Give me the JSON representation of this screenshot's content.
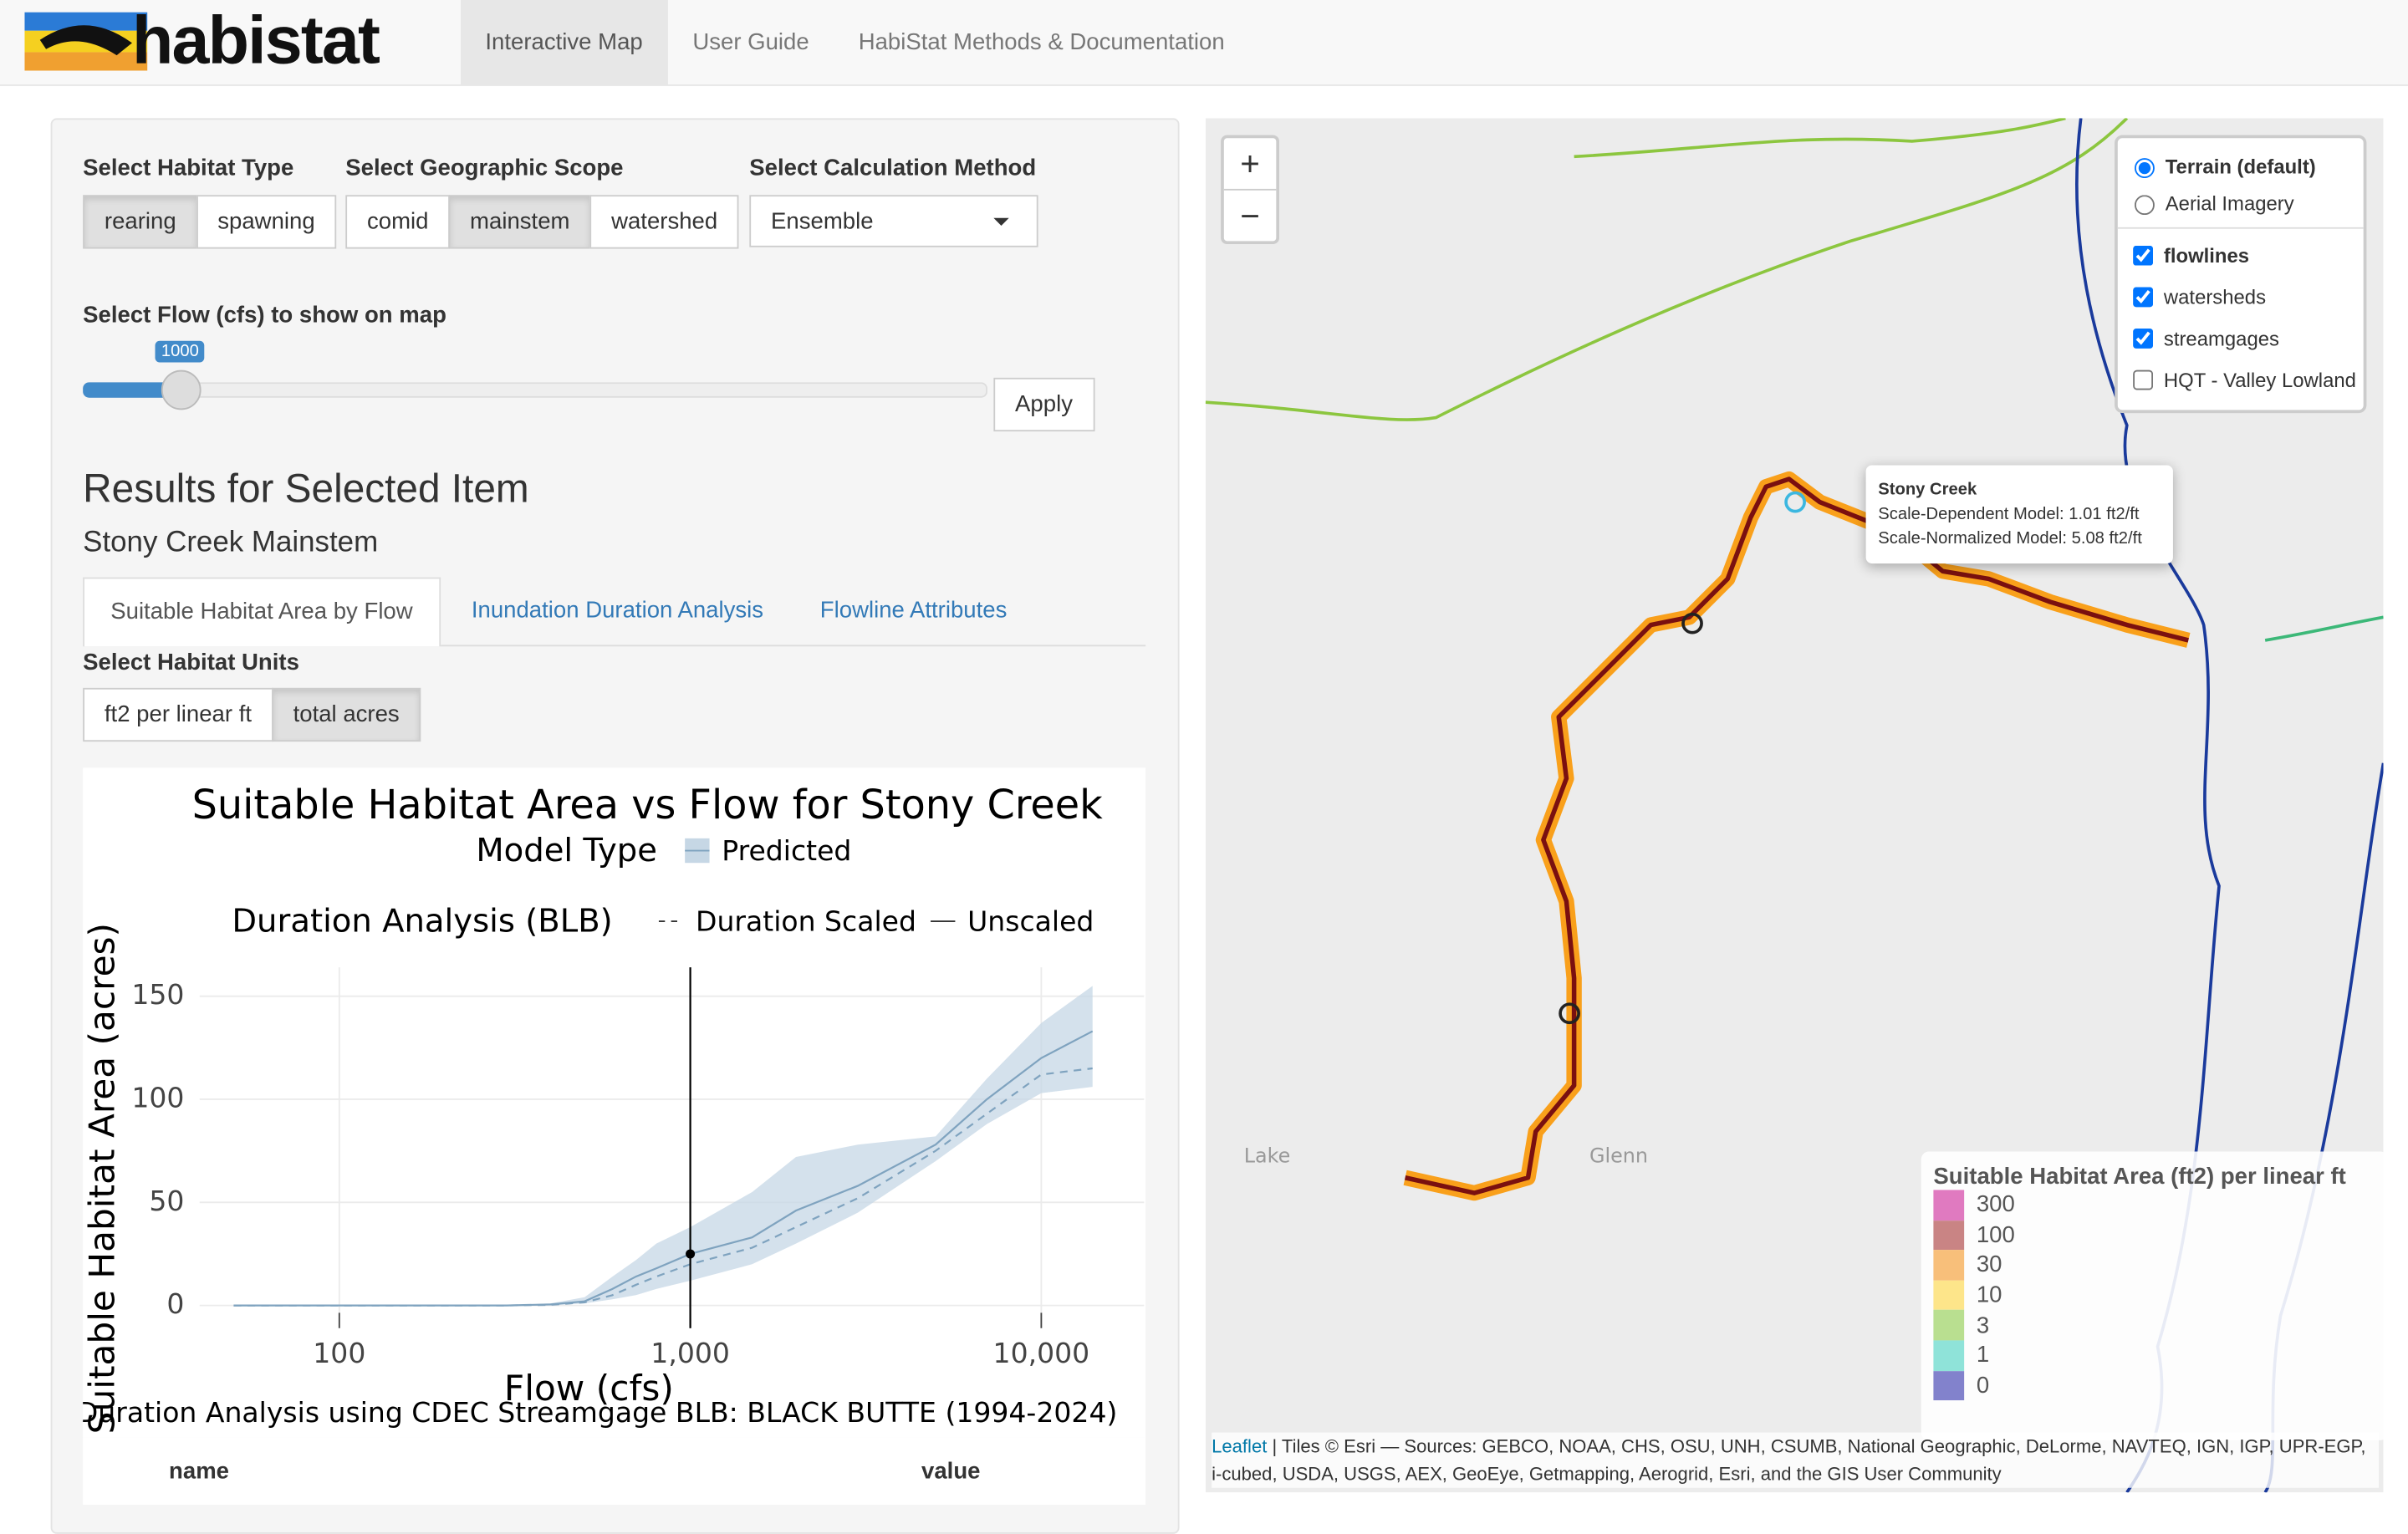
{
  "nav": {
    "brand": "habistat",
    "tabs": [
      "Interactive Map",
      "User Guide",
      "HabiStat Methods & Documentation"
    ],
    "active": 0
  },
  "controls": {
    "habitat_type": {
      "label": "Select Habitat Type",
      "options": [
        "rearing",
        "spawning"
      ],
      "selected": 0
    },
    "scope": {
      "label": "Select Geographic Scope",
      "options": [
        "comid",
        "mainstem",
        "watershed"
      ],
      "selected": 1
    },
    "method": {
      "label": "Select Calculation Method",
      "value": "Ensemble"
    },
    "flow": {
      "label": "Select Flow (cfs) to show on map",
      "value": "1000",
      "apply": "Apply"
    }
  },
  "results": {
    "heading": "Results for Selected Item",
    "item": "Stony Creek Mainstem",
    "tabs": [
      "Suitable Habitat Area by Flow",
      "Inundation Duration Analysis",
      "Flowline Attributes"
    ],
    "active_tab": 0,
    "units_label": "Select Habitat Units",
    "units": [
      "ft2 per linear ft",
      "total acres"
    ],
    "units_selected": 1
  },
  "plot": {
    "type": "line",
    "title": "Suitable Habitat Area vs Flow for Stony Creek",
    "legend_model_title": "Model Type",
    "legend_model": "Predicted",
    "legend_duration_title": "Duration Analysis (BLB)",
    "legend_duration": [
      "Duration Scaled",
      "Unscaled"
    ],
    "x_label": "Flow (cfs)",
    "y_label": "Suitable Habitat Area (acres)",
    "caption": "Duration Analysis using CDEC Streamgage BLB: BLACK BUTTE (1994-2024)",
    "x_log": true,
    "xlim": [
      40,
      19630
    ],
    "ylim": [
      -11,
      164
    ],
    "xticks": [
      {
        "value": 100,
        "label": "100"
      },
      {
        "value": 1000,
        "label": "1,000"
      },
      {
        "value": 10000,
        "label": "10,000"
      }
    ],
    "yticks": [
      0,
      50,
      100,
      150
    ],
    "x": [
      50,
      100,
      200,
      300,
      400,
      500,
      600,
      700,
      800,
      1000,
      1500,
      2000,
      3000,
      5000,
      7000,
      10000,
      14000
    ],
    "series": [
      {
        "name": "Predicted",
        "color": "#7fa3bf",
        "values": [
          0,
          0,
          0,
          0,
          0.5,
          2,
          8,
          14,
          18,
          25,
          33,
          46,
          58,
          78,
          100,
          120,
          133
        ]
      },
      {
        "name": "Duration Scaled",
        "color": "#7fa3bf",
        "values": [
          0,
          0,
          0,
          0,
          0.3,
          1.5,
          5,
          10,
          14,
          20,
          28,
          38,
          52,
          75,
          93,
          112,
          115
        ]
      }
    ],
    "band_lower": [
      0,
      0,
      0,
      0,
      0,
      1,
      3,
      5,
      8,
      12,
      20,
      30,
      45,
      70,
      88,
      103,
      106
    ],
    "band_upper": [
      0,
      0,
      0,
      0,
      1,
      4,
      14,
      22,
      30,
      38,
      55,
      72,
      78,
      82,
      110,
      137,
      155
    ],
    "selected_flow": 1000,
    "selected_value": 25
  },
  "table": {
    "columns": [
      "name",
      "value"
    ]
  },
  "map": {
    "zoom_in": "+",
    "zoom_out": "−",
    "base_layers": [
      "Terrain (default)",
      "Aerial Imagery"
    ],
    "base_selected": 0,
    "overlays": [
      {
        "name": "flowlines",
        "checked": true
      },
      {
        "name": "watersheds",
        "checked": true
      },
      {
        "name": "streamgages",
        "checked": true
      },
      {
        "name": "HQT - Valley Lowland",
        "checked": false
      }
    ],
    "popup": {
      "title": "Stony Creek",
      "lines": [
        "Scale-Dependent Model: 1.01 ft2/ft",
        "Scale-Normalized Model: 5.08 ft2/ft"
      ]
    },
    "places": [
      "Lake",
      "Glenn"
    ],
    "legend": {
      "title": "Suitable Habitat Area (ft2) per linear ft",
      "items": [
        {
          "label": "300",
          "color": "#e07ac0"
        },
        {
          "label": "100",
          "color": "#c98484"
        },
        {
          "label": "30",
          "color": "#f8bf7a"
        },
        {
          "label": "10",
          "color": "#fde58a"
        },
        {
          "label": "3",
          "color": "#b9df90"
        },
        {
          "label": "1",
          "color": "#8fe3d9"
        },
        {
          "label": "0",
          "color": "#8282cc"
        }
      ]
    },
    "attribution_link": "Leaflet",
    "attribution": "| Tiles © Esri — Sources: GEBCO, NOAA, CHS, OSU, UNH, CSUMB, National Geographic, DeLorme, NAVTEQ, IGN, IGP, UPR-EGP, i-cubed, USDA, USGS, AEX, GeoEye, Getmapping, Aerogrid, Esri, and the GIS User Community"
  }
}
